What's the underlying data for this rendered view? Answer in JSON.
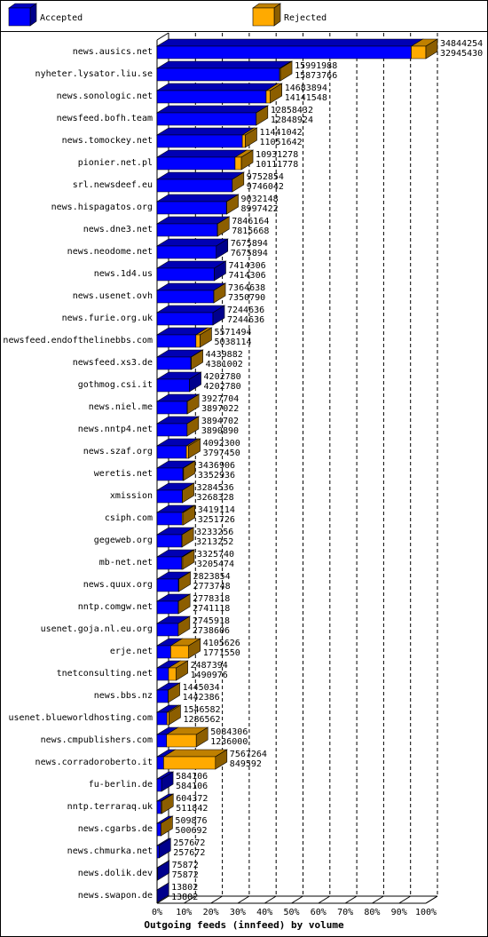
{
  "chart_data": {
    "type": "bar3d-stacked-horizontal",
    "title": "Outgoing feeds (innfeed) by volume",
    "legend": [
      {
        "name": "Accepted",
        "color": "#0000ff"
      },
      {
        "name": "Rejected",
        "color": "#ffaa00"
      }
    ],
    "categories": [
      "news.ausics.net",
      "nyheter.lysator.liu.se",
      "news.sonologic.net",
      "newsfeed.bofh.team",
      "news.tomockey.net",
      "pionier.net.pl",
      "srl.newsdeef.eu",
      "news.hispagatos.org",
      "news.dne3.net",
      "news.neodome.net",
      "news.1d4.us",
      "news.usenet.ovh",
      "news.furie.org.uk",
      "newsfeed.endofthelinebbs.com",
      "newsfeed.xs3.de",
      "gothmog.csi.it",
      "news.niel.me",
      "news.nntp4.net",
      "news.szaf.org",
      "weretis.net",
      "xmission",
      "csiph.com",
      "gegeweb.org",
      "mb-net.net",
      "news.quux.org",
      "nntp.comgw.net",
      "usenet.goja.nl.eu.org",
      "erje.net",
      "tnetconsulting.net",
      "news.bbs.nz",
      "usenet.blueworldhosting.com",
      "news.cmpublishers.com",
      "news.corradoroberto.it",
      "fu-berlin.de",
      "nntp.terraraq.uk",
      "news.cgarbs.de",
      "news.chmurka.net",
      "news.dolik.dev",
      "news.swapon.de"
    ],
    "offered": [
      34844254,
      15991988,
      14683894,
      12858432,
      11441042,
      10931278,
      9752854,
      9032148,
      7846164,
      7675894,
      7414306,
      7364638,
      7244636,
      5571494,
      4439882,
      4202780,
      3927704,
      3894702,
      4092300,
      3436906,
      3284536,
      3419114,
      3233256,
      3325740,
      2823854,
      2778318,
      2745918,
      4105626,
      2487394,
      1445034,
      1546582,
      5084306,
      7567264,
      584106,
      604372,
      509876,
      257672,
      75872,
      13802
    ],
    "accepted": [
      32945430,
      15873766,
      14141548,
      12848924,
      11051642,
      10111778,
      9746042,
      8997422,
      7815668,
      7675894,
      7414306,
      7350790,
      7244636,
      5038114,
      4381002,
      4202780,
      3897022,
      3890890,
      3797450,
      3352936,
      3268328,
      3251726,
      3213252,
      3205474,
      2773748,
      2741118,
      2738606,
      1771550,
      1490976,
      1442386,
      1286562,
      1236000,
      849592,
      584106,
      511842,
      500692,
      257672,
      75872,
      13802
    ],
    "xlim": [
      0,
      34844254
    ],
    "xticks": [
      {
        "value": 0,
        "label": "0%"
      },
      {
        "value": 3484425.4,
        "label": "10%"
      },
      {
        "value": 6968850.8,
        "label": "20%"
      },
      {
        "value": 10453276.2,
        "label": "30%"
      },
      {
        "value": 13937701.6,
        "label": "40%"
      },
      {
        "value": 17422127,
        "label": "50%"
      },
      {
        "value": 20906552.4,
        "label": "60%"
      },
      {
        "value": 24390977.8,
        "label": "70%"
      },
      {
        "value": 27875403.2,
        "label": "80%"
      },
      {
        "value": 31359828.6,
        "label": "90%"
      },
      {
        "value": 34844254,
        "label": "100%"
      }
    ],
    "grid": true
  }
}
